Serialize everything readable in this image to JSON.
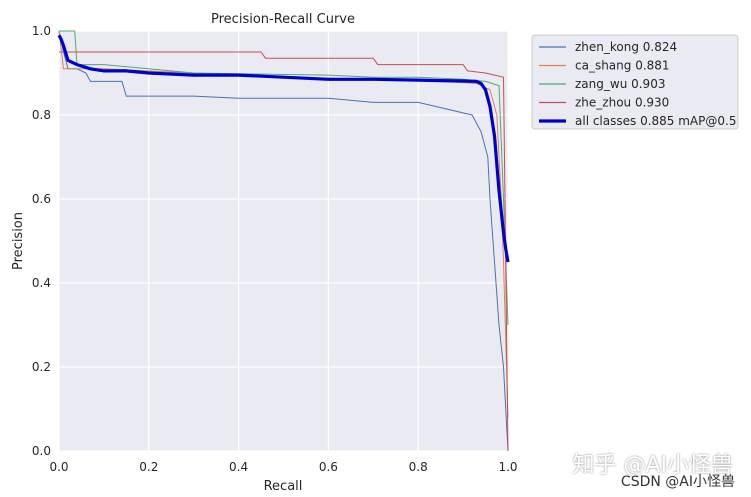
{
  "chart_data": {
    "type": "line",
    "title": "Precision-Recall Curve",
    "xlabel": "Recall",
    "ylabel": "Precision",
    "xlim": [
      0,
      1
    ],
    "ylim": [
      0,
      1
    ],
    "xticks": [
      "0.0",
      "0.2",
      "0.4",
      "0.6",
      "0.8",
      "1.0"
    ],
    "yticks": [
      "0.0",
      "0.2",
      "0.4",
      "0.6",
      "0.8",
      "1.0"
    ],
    "grid": true,
    "legend_position": "outside-right",
    "series": [
      {
        "name": "zhen_kong 0.824",
        "color": "#4c72b0",
        "x": [
          0,
          0.01,
          0.02,
          0.04,
          0.06,
          0.07,
          0.14,
          0.15,
          0.3,
          0.4,
          0.6,
          0.7,
          0.8,
          0.92,
          0.94,
          0.955,
          0.96,
          0.97,
          0.98,
          0.99,
          1.0
        ],
        "y": [
          1.0,
          0.95,
          0.91,
          0.91,
          0.9,
          0.88,
          0.88,
          0.845,
          0.845,
          0.84,
          0.84,
          0.83,
          0.83,
          0.8,
          0.76,
          0.7,
          0.6,
          0.45,
          0.3,
          0.2,
          0.0
        ]
      },
      {
        "name": "ca_shang 0.881",
        "color": "#dd8452",
        "x": [
          0,
          0.01,
          0.03,
          0.1,
          0.3,
          0.5,
          0.7,
          0.85,
          0.93,
          0.96,
          0.975,
          0.985,
          0.99,
          1.0
        ],
        "y": [
          1.0,
          0.91,
          0.91,
          0.91,
          0.9,
          0.89,
          0.885,
          0.88,
          0.875,
          0.86,
          0.8,
          0.6,
          0.45,
          0.08
        ]
      },
      {
        "name": "zang_wu 0.903",
        "color": "#55a868",
        "x": [
          0,
          0.02,
          0.035,
          0.04,
          0.1,
          0.2,
          0.3,
          0.6,
          0.7,
          0.8,
          0.9,
          0.95,
          0.98,
          0.99,
          1.0
        ],
        "y": [
          1.0,
          1.0,
          1.0,
          0.92,
          0.92,
          0.91,
          0.9,
          0.895,
          0.89,
          0.89,
          0.885,
          0.88,
          0.87,
          0.6,
          0.3
        ]
      },
      {
        "name": "zhe_zhou 0.930",
        "color": "#c44e52",
        "x": [
          0,
          0.01,
          0.02,
          0.04,
          0.1,
          0.2,
          0.45,
          0.46,
          0.7,
          0.71,
          0.9,
          0.91,
          0.95,
          0.97,
          0.99,
          1.0
        ],
        "y": [
          0.95,
          0.95,
          0.95,
          0.95,
          0.95,
          0.95,
          0.95,
          0.935,
          0.935,
          0.92,
          0.92,
          0.905,
          0.9,
          0.895,
          0.89,
          0.0
        ]
      },
      {
        "name": "all classes 0.885 mAP@0.5",
        "color": "#0000cd",
        "x": [
          0,
          0.005,
          0.01,
          0.02,
          0.04,
          0.07,
          0.1,
          0.15,
          0.2,
          0.3,
          0.4,
          0.5,
          0.6,
          0.7,
          0.8,
          0.85,
          0.9,
          0.93,
          0.94,
          0.95,
          0.96,
          0.97,
          0.98,
          0.99,
          0.995,
          1.0
        ],
        "y": [
          0.99,
          0.98,
          0.965,
          0.93,
          0.92,
          0.91,
          0.905,
          0.905,
          0.9,
          0.895,
          0.895,
          0.89,
          0.885,
          0.885,
          0.883,
          0.882,
          0.881,
          0.88,
          0.875,
          0.86,
          0.82,
          0.75,
          0.62,
          0.52,
          0.48,
          0.45
        ]
      }
    ]
  },
  "watermarks": {
    "zhihu": "知乎 @AI小怪兽",
    "csdn": "CSDN @AI小怪兽"
  }
}
